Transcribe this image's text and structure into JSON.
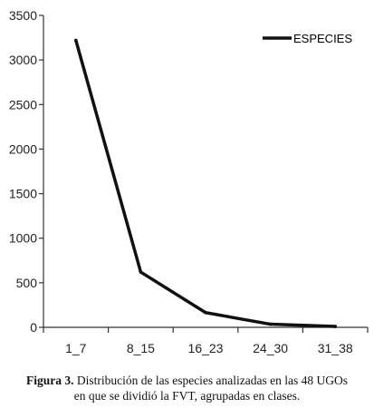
{
  "chart_data": {
    "type": "line",
    "categories": [
      "1_7",
      "8_15",
      "16_23",
      "24_30",
      "31_38"
    ],
    "series": [
      {
        "name": "ESPECIES",
        "values": [
          3220,
          620,
          165,
          35,
          10
        ]
      }
    ],
    "ylim": [
      0,
      3500
    ],
    "yticks": [
      "0",
      "500",
      "1000",
      "1500",
      "2000",
      "2500",
      "3000",
      "3500"
    ],
    "legend": "top-right",
    "grid": false,
    "colors": {
      "line": "#111111",
      "axis": "#333333"
    }
  },
  "caption": {
    "label": "Figura 3.",
    "line1": "Distribución de las especies analizadas en las 48 UGOs",
    "line2": "en que se dividió la FVT, agrupadas en clases."
  }
}
